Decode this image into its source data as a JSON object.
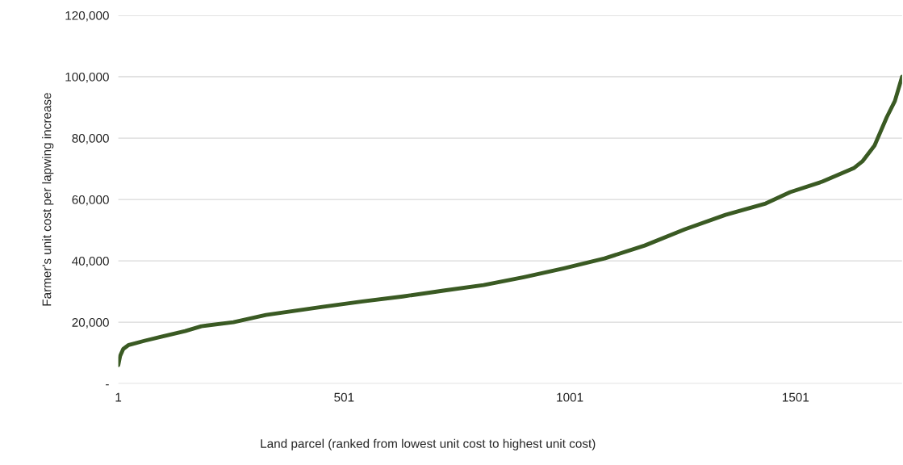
{
  "chart_data": {
    "type": "line",
    "xlabel": "Land parcel (ranked from lowest unit cost to highest unit cost)",
    "ylabel": "Farmer's unit cost per lapwing increase",
    "series": [
      {
        "color": "#3a5a23",
        "x": [
          1,
          5,
          12,
          24,
          60,
          96,
          149,
          185,
          256,
          328,
          453,
          542,
          631,
          721,
          810,
          899,
          988,
          1078,
          1167,
          1256,
          1346,
          1435,
          1489,
          1560,
          1631,
          1649,
          1676,
          1703,
          1721,
          1737
        ],
        "values": [
          6000,
          9000,
          11300,
          12600,
          14000,
          15300,
          17100,
          18700,
          20000,
          22400,
          25000,
          26800,
          28400,
          30300,
          32100,
          34700,
          37600,
          40800,
          45000,
          50300,
          55000,
          58700,
          62400,
          65800,
          70300,
          72400,
          77600,
          86800,
          92100,
          100000
        ]
      }
    ],
    "xlim": [
      1,
      1737
    ],
    "xticks": [
      1,
      501,
      1001,
      1501
    ],
    "ylim": [
      0,
      120000
    ],
    "yticks": [
      {
        "value": 0,
        "label": "-"
      },
      {
        "value": 20000,
        "label": "20,000"
      },
      {
        "value": 40000,
        "label": "40,000"
      },
      {
        "value": 60000,
        "label": "60,000"
      },
      {
        "value": 80000,
        "label": "80,000"
      },
      {
        "value": 100000,
        "label": "100,000"
      },
      {
        "value": 120000,
        "label": "120,000"
      }
    ],
    "grid": "y",
    "marker": "none",
    "line_style": "solid"
  }
}
